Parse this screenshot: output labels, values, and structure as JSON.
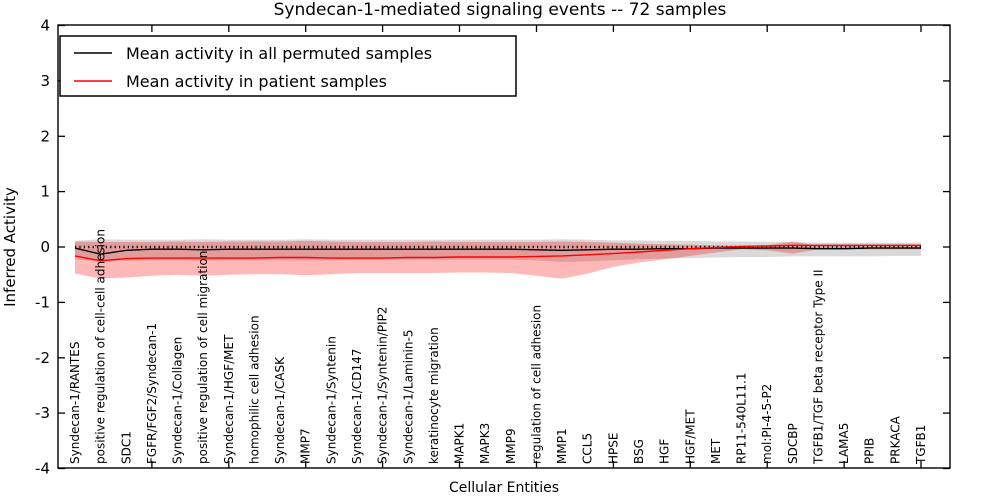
{
  "chart_data": {
    "type": "line",
    "title": "Syndecan-1-mediated signaling events -- 72 samples",
    "xlabel": "Cellular Entities",
    "ylabel": "Inferred Activity",
    "ylim": [
      -4,
      4
    ],
    "yticks": [
      -4,
      -3,
      -2,
      -1,
      0,
      1,
      2,
      3,
      4
    ],
    "grid": false,
    "legend_position": "upper left",
    "zero_line": {
      "y": 0,
      "style": "dotted",
      "color": "#000000"
    },
    "categories": [
      "Syndecan-1/RANTES",
      "positive regulation of cell-cell adhesion",
      "SDC1",
      "FGFR/FGF2/Syndecan-1",
      "Syndecan-1/Collagen",
      "positive regulation of cell migration",
      "Syndecan-1/HGF/MET",
      "homophilic cell adhesion",
      "Syndecan-1/CASK",
      "MMP7",
      "Syndecan-1/Syntenin",
      "Syndecan-1/CD147",
      "Syndecan-1/Syntenin/PIP2",
      "Syndecan-1/Laminin-5",
      "keratinocyte migration",
      "MAPK1",
      "MAPK3",
      "MMP9",
      "regulation of cell adhesion",
      "MMP1",
      "CCL5",
      "HPSE",
      "BSG",
      "HGF",
      "HGF/MET",
      "MET",
      "RP11-540L11.1",
      "mol:PI-4-5-P2",
      "SDCBP",
      "TGFB1/TGF beta receptor Type II",
      "LAMA5",
      "PPIB",
      "PRKACA",
      "TGFB1"
    ],
    "series": [
      {
        "name": "Mean activity in all permuted samples",
        "color": "#000000",
        "values": [
          -0.02,
          -0.13,
          -0.06,
          -0.04,
          -0.04,
          -0.05,
          -0.04,
          -0.04,
          -0.04,
          -0.04,
          -0.04,
          -0.04,
          -0.04,
          -0.04,
          -0.04,
          -0.04,
          -0.04,
          -0.04,
          -0.05,
          -0.06,
          -0.05,
          -0.04,
          -0.04,
          -0.03,
          -0.03,
          -0.02,
          -0.02,
          -0.02,
          -0.02,
          -0.03,
          -0.03,
          -0.02,
          -0.02,
          -0.02
        ],
        "band": {
          "color": "#888888",
          "opacity": 0.32,
          "upper": [
            0.11,
            0.14,
            0.13,
            0.13,
            0.13,
            0.14,
            0.13,
            0.13,
            0.13,
            0.14,
            0.13,
            0.13,
            0.13,
            0.13,
            0.13,
            0.13,
            0.13,
            0.13,
            0.13,
            0.14,
            0.13,
            0.12,
            0.12,
            0.11,
            0.11,
            0.1,
            0.1,
            0.09,
            0.09,
            0.08,
            0.08,
            0.08,
            0.08,
            0.08
          ],
          "lower": [
            -0.22,
            -0.26,
            -0.25,
            -0.24,
            -0.24,
            -0.25,
            -0.24,
            -0.24,
            -0.24,
            -0.25,
            -0.24,
            -0.23,
            -0.23,
            -0.23,
            -0.23,
            -0.23,
            -0.23,
            -0.23,
            -0.24,
            -0.27,
            -0.26,
            -0.24,
            -0.22,
            -0.21,
            -0.2,
            -0.19,
            -0.18,
            -0.18,
            -0.17,
            -0.17,
            -0.17,
            -0.17,
            -0.16,
            -0.16
          ]
        }
      },
      {
        "name": "Mean activity in patient samples",
        "color": "#ff0000",
        "values": [
          -0.16,
          -0.25,
          -0.21,
          -0.2,
          -0.2,
          -0.2,
          -0.2,
          -0.2,
          -0.19,
          -0.19,
          -0.2,
          -0.2,
          -0.2,
          -0.19,
          -0.19,
          -0.18,
          -0.18,
          -0.18,
          -0.17,
          -0.16,
          -0.14,
          -0.12,
          -0.09,
          -0.06,
          -0.03,
          -0.01,
          0.01,
          0.02,
          0.03,
          0.03,
          0.03,
          0.03,
          0.03,
          0.03
        ],
        "band": {
          "color": "#ff0000",
          "opacity": 0.28,
          "upper": [
            0.1,
            0.09,
            0.09,
            0.09,
            0.1,
            0.09,
            0.1,
            0.1,
            0.1,
            0.11,
            0.1,
            0.09,
            0.09,
            0.09,
            0.1,
            0.09,
            0.09,
            0.09,
            0.09,
            0.1,
            0.09,
            0.08,
            0.06,
            0.05,
            0.04,
            0.03,
            0.02,
            0.03,
            0.1,
            0.02,
            0.02,
            0.02,
            0.02,
            0.03
          ],
          "lower": [
            -0.48,
            -0.57,
            -0.55,
            -0.52,
            -0.5,
            -0.52,
            -0.5,
            -0.49,
            -0.49,
            -0.51,
            -0.49,
            -0.47,
            -0.47,
            -0.47,
            -0.47,
            -0.46,
            -0.46,
            -0.47,
            -0.52,
            -0.57,
            -0.48,
            -0.36,
            -0.28,
            -0.22,
            -0.16,
            -0.1,
            -0.04,
            -0.06,
            -0.12,
            -0.04,
            -0.04,
            -0.04,
            -0.04,
            -0.04
          ]
        }
      }
    ]
  }
}
